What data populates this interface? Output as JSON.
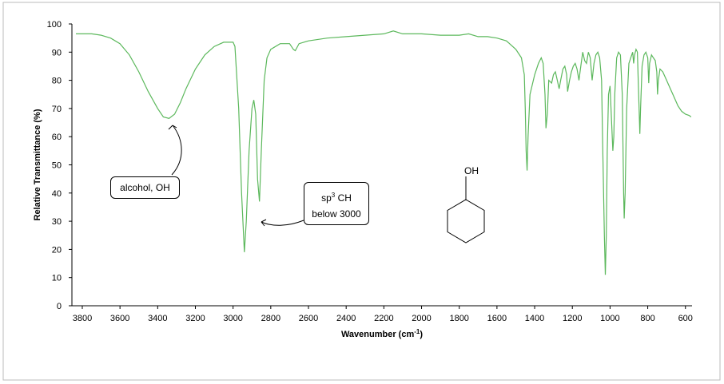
{
  "chart_data": {
    "type": "line",
    "ylabel": "Relative Transmittance (%)",
    "xlabel": [
      "Wavenumber (cm",
      "-1",
      ")"
    ],
    "xlim": [
      3855,
      565
    ],
    "ylim": [
      0,
      100
    ],
    "xticks": [
      3800,
      3600,
      3400,
      3200,
      3000,
      2800,
      2600,
      2400,
      2200,
      2000,
      1800,
      1600,
      1400,
      1200,
      1000,
      800,
      600
    ],
    "yticks": [
      0,
      10,
      20,
      30,
      40,
      50,
      60,
      70,
      80,
      90,
      100
    ],
    "annotations": [
      {
        "text": "alcohol, OH"
      },
      {
        "parts": [
          "sp",
          "3",
          "CH"
        ],
        "text2": "below 3000"
      }
    ],
    "structure_label": "OH",
    "x": [
      3834,
      3750,
      3700,
      3650,
      3600,
      3550,
      3500,
      3450,
      3400,
      3370,
      3340,
      3310,
      3280,
      3250,
      3200,
      3150,
      3100,
      3050,
      3000,
      2990,
      2970,
      2955,
      2940,
      2930,
      2915,
      2900,
      2890,
      2880,
      2870,
      2860,
      2850,
      2835,
      2820,
      2800,
      2750,
      2700,
      2680,
      2670,
      2650,
      2600,
      2500,
      2400,
      2300,
      2200,
      2150,
      2100,
      2000,
      1900,
      1800,
      1750,
      1700,
      1650,
      1600,
      1550,
      1500,
      1470,
      1455,
      1450,
      1445,
      1440,
      1435,
      1425,
      1400,
      1380,
      1365,
      1355,
      1345,
      1340,
      1333,
      1325,
      1310,
      1300,
      1290,
      1280,
      1270,
      1262,
      1250,
      1240,
      1230,
      1225,
      1215,
      1205,
      1195,
      1185,
      1175,
      1165,
      1155,
      1145,
      1135,
      1125,
      1115,
      1105,
      1095,
      1085,
      1075,
      1065,
      1055,
      1045,
      1040,
      1030,
      1025,
      1020,
      1015,
      1008,
      1000,
      995,
      985,
      980,
      975,
      965,
      955,
      945,
      935,
      928,
      925,
      920,
      912,
      900,
      890,
      880,
      875,
      870,
      862,
      855,
      848,
      842,
      838,
      830,
      820,
      810,
      800,
      795,
      790,
      780,
      770,
      760,
      752,
      748,
      744,
      735,
      720,
      700,
      680,
      660,
      640,
      620,
      600,
      580,
      570
    ],
    "series": [
      {
        "color": "#5cb85c",
        "values": [
          96.5,
          96.5,
          96,
          95,
          93,
          89,
          83,
          76,
          70,
          67,
          66.5,
          68,
          72,
          77,
          84,
          89,
          92,
          93.5,
          93.5,
          92,
          70,
          40,
          19,
          30,
          55,
          70,
          73,
          68,
          45,
          37,
          55,
          80,
          88,
          91,
          93,
          93,
          91,
          90.5,
          93,
          94,
          95,
          95.5,
          96,
          96.5,
          97.5,
          96.5,
          96.5,
          96,
          96,
          96.5,
          95.5,
          95.5,
          95,
          94,
          91,
          88,
          82,
          70,
          55,
          48,
          60,
          75,
          82,
          86,
          88,
          86,
          75,
          63,
          68,
          80,
          79,
          82,
          83,
          80,
          77,
          80,
          84,
          85,
          82,
          76,
          80,
          83,
          85,
          86,
          84,
          80,
          85,
          90,
          87,
          86,
          90,
          88,
          80,
          86,
          89,
          90,
          88,
          80,
          60,
          25,
          11,
          25,
          55,
          75,
          78,
          70,
          55,
          60,
          75,
          88,
          90,
          89,
          75,
          40,
          31,
          40,
          70,
          86,
          88,
          90,
          86,
          89,
          91,
          90,
          75,
          61,
          70,
          85,
          89,
          90,
          88,
          79,
          86,
          89,
          88,
          87,
          83,
          75,
          80,
          84,
          83,
          80,
          77,
          74,
          71,
          69,
          68,
          67.5,
          67
        ]
      }
    ]
  }
}
